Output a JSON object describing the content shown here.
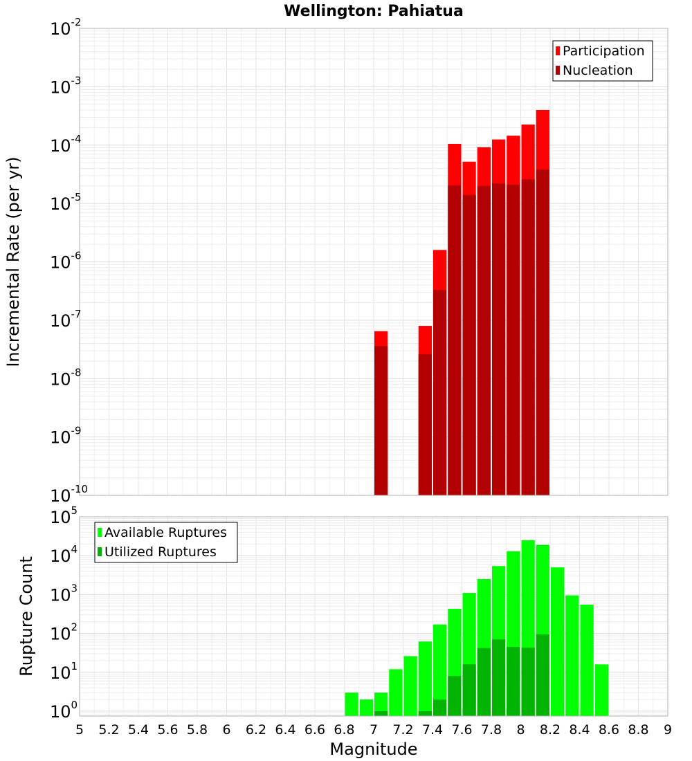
{
  "chart_data": [
    {
      "type": "bar",
      "title": "Wellington: Pahiatua",
      "ylabel": "Incremental Rate (per yr)",
      "xlabel": "",
      "yscale": "log",
      "ylim": [
        1e-10,
        0.01
      ],
      "xlim": [
        5,
        9
      ],
      "y_tick_base": "10",
      "y_ticks": [
        {
          "value": 1e-10,
          "exp": "-10"
        },
        {
          "value": 1e-09,
          "exp": "-9"
        },
        {
          "value": 1e-08,
          "exp": "-8"
        },
        {
          "value": 1e-07,
          "exp": "-7"
        },
        {
          "value": 1e-06,
          "exp": "-6"
        },
        {
          "value": 1e-05,
          "exp": "-5"
        },
        {
          "value": 0.0001,
          "exp": "-4"
        },
        {
          "value": 0.001,
          "exp": "-3"
        },
        {
          "value": 0.01,
          "exp": "-2"
        }
      ],
      "legend_position": "top-right",
      "series": [
        {
          "name": "Participation",
          "color": "#ff0000",
          "x": [
            7.05,
            7.35,
            7.45,
            7.55,
            7.65,
            7.75,
            7.85,
            7.95,
            8.05,
            8.15
          ],
          "values": [
            6.5e-08,
            8e-08,
            1.6e-06,
            0.000105,
            5.2e-05,
            9.2e-05,
            0.000125,
            0.000145,
            0.000225,
            0.0004
          ]
        },
        {
          "name": "Nucleation",
          "color": "#b30000",
          "x": [
            7.05,
            7.35,
            7.45,
            7.55,
            7.65,
            7.75,
            7.85,
            7.95,
            8.05,
            8.15
          ],
          "values": [
            3.6e-08,
            2.6e-08,
            3.3e-07,
            2.05e-05,
            1.4e-05,
            2e-05,
            2.2e-05,
            2.1e-05,
            2.6e-05,
            3.8e-05
          ]
        }
      ]
    },
    {
      "type": "bar",
      "title": "",
      "ylabel": "Rupture Count",
      "xlabel": "Magnitude",
      "yscale": "log",
      "ylim": [
        0.75,
        100000.0
      ],
      "xlim": [
        5,
        9
      ],
      "y_tick_base": "10",
      "y_ticks": [
        {
          "value": 1,
          "exp": "0"
        },
        {
          "value": 10,
          "exp": "1"
        },
        {
          "value": 100,
          "exp": "2"
        },
        {
          "value": 1000,
          "exp": "3"
        },
        {
          "value": 10000,
          "exp": "4"
        },
        {
          "value": 100000,
          "exp": "5"
        }
      ],
      "x_ticks": [
        "5",
        "5.2",
        "5.4",
        "5.6",
        "5.8",
        "6",
        "6.2",
        "6.4",
        "6.6",
        "6.8",
        "7",
        "7.2",
        "7.4",
        "7.6",
        "7.8",
        "8",
        "8.2",
        "8.4",
        "8.6",
        "8.8",
        "9"
      ],
      "legend_position": "top-left",
      "series": [
        {
          "name": "Available Ruptures",
          "color": "#00ff00",
          "x": [
            6.85,
            6.95,
            7.05,
            7.15,
            7.25,
            7.35,
            7.45,
            7.55,
            7.65,
            7.75,
            7.85,
            7.95,
            8.05,
            8.15,
            8.25,
            8.35,
            8.45,
            8.55
          ],
          "values": [
            3,
            2,
            3,
            12,
            26,
            62,
            170,
            430,
            1100,
            2500,
            5400,
            13000,
            25000,
            19000,
            5000,
            950,
            550,
            16
          ]
        },
        {
          "name": "Utilized Ruptures",
          "color": "#00b300",
          "x": [
            7.05,
            7.35,
            7.45,
            7.55,
            7.65,
            7.75,
            7.85,
            7.95,
            8.05,
            8.15
          ],
          "values": [
            1,
            1,
            2,
            8,
            16,
            42,
            70,
            45,
            43,
            95
          ]
        }
      ]
    }
  ]
}
